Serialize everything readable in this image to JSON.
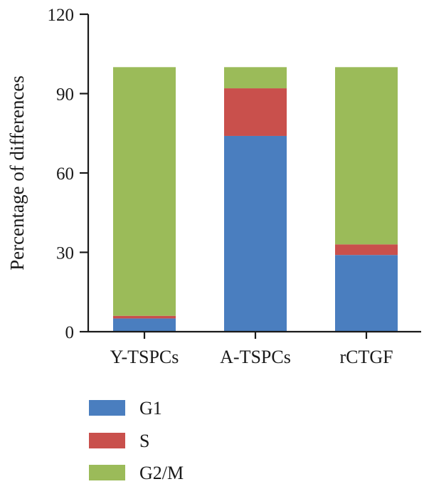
{
  "chart_data": {
    "type": "bar",
    "stacked": true,
    "categories": [
      "Y-TSPCs",
      "A-TSPCs",
      "rCTGF"
    ],
    "series": [
      {
        "name": "G1",
        "color": "#4a7ebf",
        "values": [
          5,
          74,
          29
        ]
      },
      {
        "name": "S",
        "color": "#c9504c",
        "values": [
          1,
          18,
          4
        ]
      },
      {
        "name": "G2/M",
        "color": "#9bbb59",
        "values": [
          94,
          8,
          67
        ]
      }
    ],
    "title": "",
    "xlabel": "",
    "ylabel": "Percentage of differences",
    "ylim": [
      0,
      120
    ],
    "yticks": [
      0,
      30,
      60,
      90,
      120
    ],
    "ytick_labels": [
      "0",
      "30",
      "60",
      "90",
      "120"
    ],
    "grid": false,
    "legend_position": "bottom-left"
  }
}
